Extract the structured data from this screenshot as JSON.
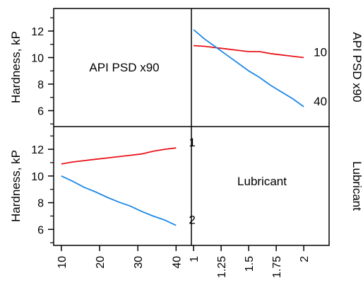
{
  "chart_data": {
    "type": "line",
    "layout": "interaction-plot-matrix",
    "factors": [
      {
        "name": "API PSD x90",
        "ticks": [
          10,
          20,
          30,
          40
        ],
        "tick_labels": [
          "10",
          "20",
          "30",
          "40"
        ],
        "range": [
          8,
          44
        ]
      },
      {
        "name": "Lubricant",
        "ticks": [
          1,
          1.25,
          1.5,
          1.75,
          2
        ],
        "tick_labels": [
          "1",
          "1.25",
          "1.5",
          "1.75",
          "2"
        ],
        "range": [
          0.98,
          2.23
        ]
      }
    ],
    "ylabel": "Hardness, kP",
    "ylim": [
      4.8,
      13.7
    ],
    "yticks": [
      6,
      8,
      10,
      12
    ],
    "ytick_labels": [
      "6",
      "8",
      "10",
      "12"
    ],
    "colors": {
      "series_a": "#e8141a",
      "series_b": "#1e88e5",
      "frame": "#000000"
    },
    "panels": [
      {
        "position": "top-right",
        "x_factor": "Lubricant",
        "trace_factor": "API PSD x90",
        "series": [
          {
            "name": "10",
            "color": "#e8141a",
            "x": [
              1,
              1.1,
              1.2,
              1.3,
              1.4,
              1.5,
              1.6,
              1.7,
              1.8,
              1.9,
              2
            ],
            "y": [
              10.9,
              10.85,
              10.75,
              10.65,
              10.55,
              10.45,
              10.45,
              10.3,
              10.2,
              10.1,
              10.0
            ]
          },
          {
            "name": "40",
            "color": "#1e88e5",
            "x": [
              1,
              1.1,
              1.2,
              1.3,
              1.4,
              1.5,
              1.6,
              1.7,
              1.8,
              1.9,
              2
            ],
            "y": [
              12.1,
              11.4,
              10.8,
              10.2,
              9.6,
              9.0,
              8.5,
              7.9,
              7.4,
              6.9,
              6.3
            ]
          }
        ]
      },
      {
        "position": "bottom-left",
        "x_factor": "API PSD x90",
        "trace_factor": "Lubricant",
        "series": [
          {
            "name": "1",
            "color": "#e8141a",
            "x": [
              10,
              13,
              16,
              19,
              22,
              25,
              28,
              31,
              34,
              37,
              40
            ],
            "y": [
              10.9,
              11.05,
              11.15,
              11.25,
              11.35,
              11.45,
              11.55,
              11.65,
              11.85,
              12.0,
              12.1
            ]
          },
          {
            "name": "2",
            "color": "#1e88e5",
            "x": [
              10,
              13,
              16,
              19,
              22,
              25,
              28,
              31,
              34,
              37,
              40
            ],
            "y": [
              10.0,
              9.6,
              9.15,
              8.8,
              8.4,
              8.05,
              7.75,
              7.35,
              7.0,
              6.7,
              6.3
            ]
          }
        ]
      }
    ]
  }
}
